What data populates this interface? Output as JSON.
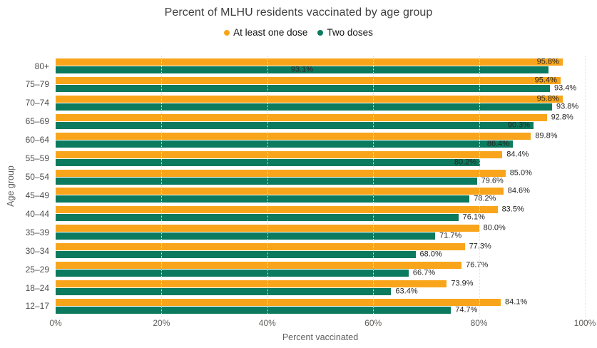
{
  "chart_data": {
    "type": "bar",
    "orientation": "horizontal",
    "title": "Percent of MLHU residents vaccinated by age group",
    "xlabel": "Percent vaccinated",
    "ylabel": "Age group",
    "xlim": [
      0,
      100
    ],
    "x_tick_values": [
      0,
      20,
      40,
      60,
      80,
      100
    ],
    "x_tick_labels": [
      "0%",
      "20%",
      "40%",
      "60%",
      "80%",
      "100%"
    ],
    "grid": true,
    "legend_position": "top",
    "categories": [
      "80+",
      "75–79",
      "70–74",
      "65–69",
      "60–64",
      "55–59",
      "50–54",
      "45–49",
      "40–44",
      "35–39",
      "30–34",
      "25–29",
      "18–24",
      "12–17"
    ],
    "series": [
      {
        "name": "At least one dose",
        "color": "#F9A51B",
        "values": [
          95.8,
          95.4,
          95.8,
          92.8,
          89.8,
          84.4,
          85.0,
          84.6,
          83.5,
          80.0,
          77.3,
          76.7,
          73.9,
          84.1
        ],
        "labels": [
          "95.8%",
          "95.4%",
          "95.8%",
          "92.8%",
          "89.8%",
          "84.4%",
          "85.0%",
          "84.6%",
          "83.5%",
          "80.0%",
          "77.3%",
          "76.7%",
          "73.9%",
          "84.1%"
        ],
        "label_pos": [
          "in",
          "in",
          "in",
          "out",
          "out",
          "out",
          "out",
          "out",
          "out",
          "out",
          "out",
          "out",
          "out",
          "out"
        ]
      },
      {
        "name": "Two doses",
        "color": "#0B7A5E",
        "values": [
          93.1,
          93.4,
          93.8,
          90.3,
          86.4,
          80.2,
          79.6,
          78.2,
          76.1,
          71.7,
          68.0,
          66.7,
          63.4,
          74.7
        ],
        "labels": [
          "93.1%",
          "93.4%",
          "93.8%",
          "90.3%",
          "86.4%",
          "80.2%",
          "79.6%",
          "78.2%",
          "76.1%",
          "71.7%",
          "68.0%",
          "66.7%",
          "63.4%",
          "74.7%"
        ],
        "label_pos": [
          "center",
          "out",
          "out",
          "in",
          "in",
          "in",
          "out",
          "out",
          "out",
          "out",
          "out",
          "out",
          "out",
          "out"
        ]
      }
    ],
    "colors": {
      "label_text": "#252423",
      "axis_text": "#605e5c",
      "title_text": "#3f3f3f",
      "gridline": "#e2e2e2"
    }
  }
}
